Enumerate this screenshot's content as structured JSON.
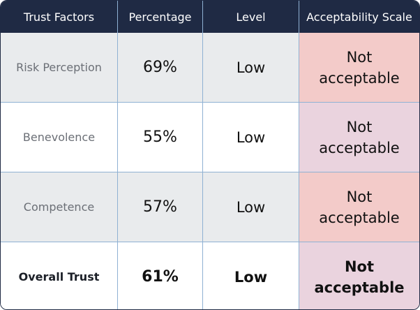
{
  "headers": {
    "trust_factors": "Trust Factors",
    "percentage": "Percentage",
    "level": "Level",
    "acceptability": "Acceptability Scale"
  },
  "rows": [
    {
      "factor": "Risk Perception",
      "percentage": "69%",
      "level": "Low",
      "acceptability": "Not acceptable"
    },
    {
      "factor": "Benevolence",
      "percentage": "55%",
      "level": "Low",
      "acceptability": "Not acceptable"
    },
    {
      "factor": "Competence",
      "percentage": "57%",
      "level": "Low",
      "acceptability": "Not acceptable"
    },
    {
      "factor": "Overall Trust",
      "percentage": "61%",
      "level": "Low",
      "acceptability": "Not acceptable"
    }
  ],
  "colors": {
    "header_bg": "#1f2a44",
    "grid_line": "#8fb1d3",
    "row_gray": "#e9ebed",
    "row_white": "#ffffff",
    "accept_pink": "#f3cbc9",
    "accept_mauve": "#ead3de"
  }
}
